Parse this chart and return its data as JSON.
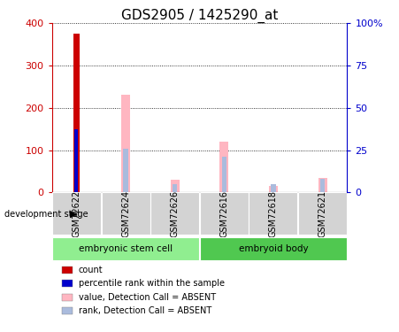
{
  "title": "GDS2905 / 1425290_at",
  "samples": [
    "GSM72622",
    "GSM72624",
    "GSM72626",
    "GSM72616",
    "GSM72618",
    "GSM72621"
  ],
  "group1_label": "embryonic stem cell",
  "group2_label": "embryoid body",
  "group1_indices": [
    0,
    1,
    2
  ],
  "group2_indices": [
    3,
    4,
    5
  ],
  "group1_color": "#90EE90",
  "group2_color": "#50C850",
  "count_values": [
    375,
    0,
    0,
    0,
    0,
    0
  ],
  "percentile_values": [
    37.5,
    0,
    0,
    0,
    0,
    0
  ],
  "absent_value": [
    0,
    232,
    30,
    120,
    15,
    35
  ],
  "absent_rank": [
    0,
    26,
    5,
    21,
    5,
    8
  ],
  "ylim_left": [
    0,
    400
  ],
  "ylim_right": [
    0,
    100
  ],
  "left_ticks": [
    0,
    100,
    200,
    300,
    400
  ],
  "right_ticks": [
    0,
    25,
    50,
    75,
    100
  ],
  "right_tick_labels": [
    "0",
    "25",
    "50",
    "75",
    "100%"
  ],
  "count_color": "#CC0000",
  "percentile_color": "#0000CC",
  "absent_value_color": "#FFB6C1",
  "absent_rank_color": "#AABBDD",
  "sample_box_color": "#D3D3D3",
  "title_fontsize": 11,
  "axis_fontsize": 8,
  "tick_fontsize": 8,
  "legend_fontsize": 8,
  "sample_fontsize": 7
}
